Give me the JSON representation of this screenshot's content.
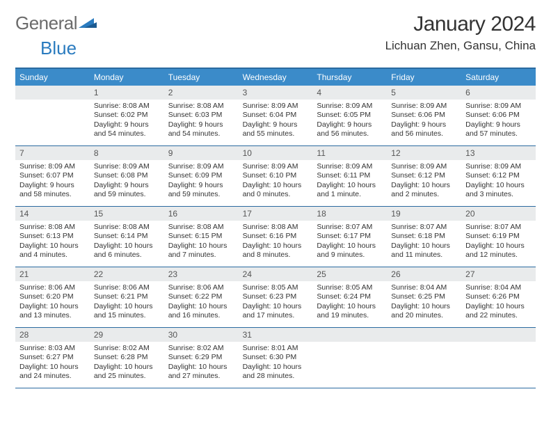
{
  "logo": {
    "word1": "General",
    "word2": "Blue"
  },
  "title": "January 2024",
  "location": "Lichuan Zhen, Gansu, China",
  "colors": {
    "header_bg": "#3b8bc9",
    "header_border": "#2a6aa0",
    "date_bg": "#e9ebec",
    "text": "#333333",
    "logo_gray": "#6b6b6b",
    "logo_blue": "#2a7bbf"
  },
  "day_names": [
    "Sunday",
    "Monday",
    "Tuesday",
    "Wednesday",
    "Thursday",
    "Friday",
    "Saturday"
  ],
  "weeks": [
    [
      {
        "date": "",
        "sunrise": "",
        "sunset": "",
        "daylight": ""
      },
      {
        "date": "1",
        "sunrise": "Sunrise: 8:08 AM",
        "sunset": "Sunset: 6:02 PM",
        "daylight": "Daylight: 9 hours and 54 minutes."
      },
      {
        "date": "2",
        "sunrise": "Sunrise: 8:08 AM",
        "sunset": "Sunset: 6:03 PM",
        "daylight": "Daylight: 9 hours and 54 minutes."
      },
      {
        "date": "3",
        "sunrise": "Sunrise: 8:09 AM",
        "sunset": "Sunset: 6:04 PM",
        "daylight": "Daylight: 9 hours and 55 minutes."
      },
      {
        "date": "4",
        "sunrise": "Sunrise: 8:09 AM",
        "sunset": "Sunset: 6:05 PM",
        "daylight": "Daylight: 9 hours and 56 minutes."
      },
      {
        "date": "5",
        "sunrise": "Sunrise: 8:09 AM",
        "sunset": "Sunset: 6:06 PM",
        "daylight": "Daylight: 9 hours and 56 minutes."
      },
      {
        "date": "6",
        "sunrise": "Sunrise: 8:09 AM",
        "sunset": "Sunset: 6:06 PM",
        "daylight": "Daylight: 9 hours and 57 minutes."
      }
    ],
    [
      {
        "date": "7",
        "sunrise": "Sunrise: 8:09 AM",
        "sunset": "Sunset: 6:07 PM",
        "daylight": "Daylight: 9 hours and 58 minutes."
      },
      {
        "date": "8",
        "sunrise": "Sunrise: 8:09 AM",
        "sunset": "Sunset: 6:08 PM",
        "daylight": "Daylight: 9 hours and 59 minutes."
      },
      {
        "date": "9",
        "sunrise": "Sunrise: 8:09 AM",
        "sunset": "Sunset: 6:09 PM",
        "daylight": "Daylight: 9 hours and 59 minutes."
      },
      {
        "date": "10",
        "sunrise": "Sunrise: 8:09 AM",
        "sunset": "Sunset: 6:10 PM",
        "daylight": "Daylight: 10 hours and 0 minutes."
      },
      {
        "date": "11",
        "sunrise": "Sunrise: 8:09 AM",
        "sunset": "Sunset: 6:11 PM",
        "daylight": "Daylight: 10 hours and 1 minute."
      },
      {
        "date": "12",
        "sunrise": "Sunrise: 8:09 AM",
        "sunset": "Sunset: 6:12 PM",
        "daylight": "Daylight: 10 hours and 2 minutes."
      },
      {
        "date": "13",
        "sunrise": "Sunrise: 8:09 AM",
        "sunset": "Sunset: 6:12 PM",
        "daylight": "Daylight: 10 hours and 3 minutes."
      }
    ],
    [
      {
        "date": "14",
        "sunrise": "Sunrise: 8:08 AM",
        "sunset": "Sunset: 6:13 PM",
        "daylight": "Daylight: 10 hours and 4 minutes."
      },
      {
        "date": "15",
        "sunrise": "Sunrise: 8:08 AM",
        "sunset": "Sunset: 6:14 PM",
        "daylight": "Daylight: 10 hours and 6 minutes."
      },
      {
        "date": "16",
        "sunrise": "Sunrise: 8:08 AM",
        "sunset": "Sunset: 6:15 PM",
        "daylight": "Daylight: 10 hours and 7 minutes."
      },
      {
        "date": "17",
        "sunrise": "Sunrise: 8:08 AM",
        "sunset": "Sunset: 6:16 PM",
        "daylight": "Daylight: 10 hours and 8 minutes."
      },
      {
        "date": "18",
        "sunrise": "Sunrise: 8:07 AM",
        "sunset": "Sunset: 6:17 PM",
        "daylight": "Daylight: 10 hours and 9 minutes."
      },
      {
        "date": "19",
        "sunrise": "Sunrise: 8:07 AM",
        "sunset": "Sunset: 6:18 PM",
        "daylight": "Daylight: 10 hours and 11 minutes."
      },
      {
        "date": "20",
        "sunrise": "Sunrise: 8:07 AM",
        "sunset": "Sunset: 6:19 PM",
        "daylight": "Daylight: 10 hours and 12 minutes."
      }
    ],
    [
      {
        "date": "21",
        "sunrise": "Sunrise: 8:06 AM",
        "sunset": "Sunset: 6:20 PM",
        "daylight": "Daylight: 10 hours and 13 minutes."
      },
      {
        "date": "22",
        "sunrise": "Sunrise: 8:06 AM",
        "sunset": "Sunset: 6:21 PM",
        "daylight": "Daylight: 10 hours and 15 minutes."
      },
      {
        "date": "23",
        "sunrise": "Sunrise: 8:06 AM",
        "sunset": "Sunset: 6:22 PM",
        "daylight": "Daylight: 10 hours and 16 minutes."
      },
      {
        "date": "24",
        "sunrise": "Sunrise: 8:05 AM",
        "sunset": "Sunset: 6:23 PM",
        "daylight": "Daylight: 10 hours and 17 minutes."
      },
      {
        "date": "25",
        "sunrise": "Sunrise: 8:05 AM",
        "sunset": "Sunset: 6:24 PM",
        "daylight": "Daylight: 10 hours and 19 minutes."
      },
      {
        "date": "26",
        "sunrise": "Sunrise: 8:04 AM",
        "sunset": "Sunset: 6:25 PM",
        "daylight": "Daylight: 10 hours and 20 minutes."
      },
      {
        "date": "27",
        "sunrise": "Sunrise: 8:04 AM",
        "sunset": "Sunset: 6:26 PM",
        "daylight": "Daylight: 10 hours and 22 minutes."
      }
    ],
    [
      {
        "date": "28",
        "sunrise": "Sunrise: 8:03 AM",
        "sunset": "Sunset: 6:27 PM",
        "daylight": "Daylight: 10 hours and 24 minutes."
      },
      {
        "date": "29",
        "sunrise": "Sunrise: 8:02 AM",
        "sunset": "Sunset: 6:28 PM",
        "daylight": "Daylight: 10 hours and 25 minutes."
      },
      {
        "date": "30",
        "sunrise": "Sunrise: 8:02 AM",
        "sunset": "Sunset: 6:29 PM",
        "daylight": "Daylight: 10 hours and 27 minutes."
      },
      {
        "date": "31",
        "sunrise": "Sunrise: 8:01 AM",
        "sunset": "Sunset: 6:30 PM",
        "daylight": "Daylight: 10 hours and 28 minutes."
      },
      {
        "date": "",
        "sunrise": "",
        "sunset": "",
        "daylight": ""
      },
      {
        "date": "",
        "sunrise": "",
        "sunset": "",
        "daylight": ""
      },
      {
        "date": "",
        "sunrise": "",
        "sunset": "",
        "daylight": ""
      }
    ]
  ]
}
